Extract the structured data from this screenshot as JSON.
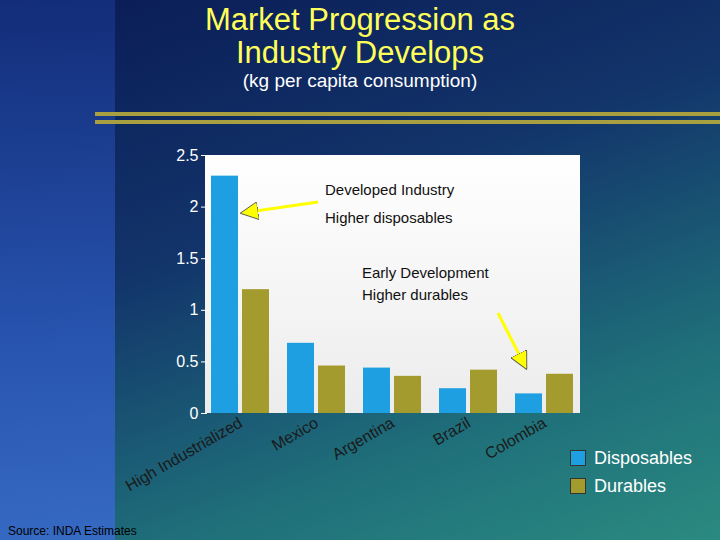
{
  "chart_data": {
    "type": "bar",
    "title": "Market Progression as Industry Develops",
    "subtitle": "(kg per capita consumption)",
    "categories": [
      "High Industrialized",
      "Mexico",
      "Argentina",
      "Brazil",
      "Colombia"
    ],
    "series": [
      {
        "name": "Disposables",
        "color": "#1e9fe2",
        "values": [
          2.3,
          0.68,
          0.44,
          0.24,
          0.19
        ]
      },
      {
        "name": "Durables",
        "color": "#a39b2e",
        "values": [
          1.2,
          0.46,
          0.36,
          0.42,
          0.38
        ]
      }
    ],
    "ylim": [
      0,
      2.5
    ],
    "yticks": [
      0,
      0.5,
      1,
      1.5,
      2,
      2.5
    ],
    "grid": false,
    "legend": "bottom-right",
    "annotations": [
      {
        "text": [
          "Developed Industry",
          "Higher disposables"
        ]
      },
      {
        "text": [
          "Early Development",
          "Higher durables"
        ]
      }
    ],
    "source": "Source: INDA Estimates"
  }
}
